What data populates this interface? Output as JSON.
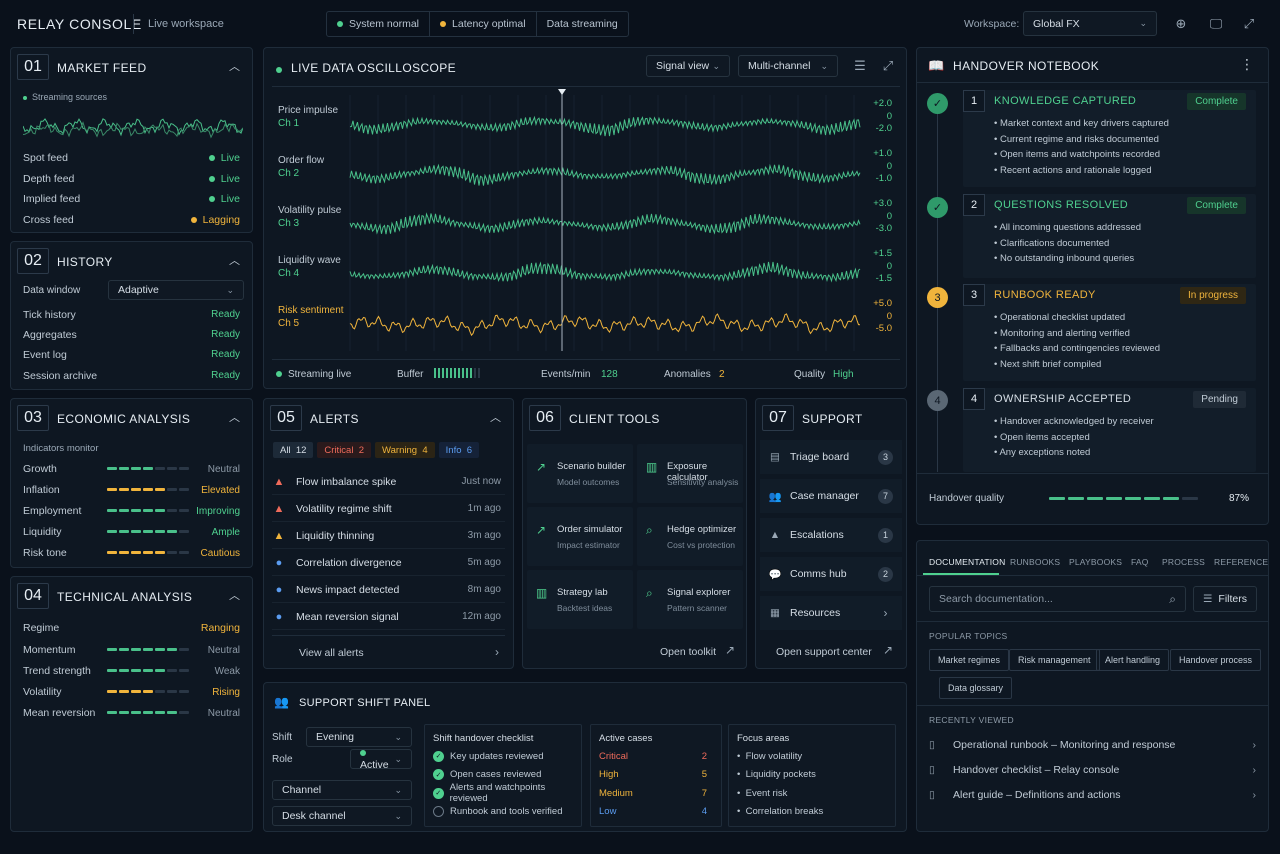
{
  "topbar": {
    "brand": "RELAY CONSOLE",
    "workspace_label": "Live workspace",
    "statuses": [
      {
        "label": "System normal",
        "color": "#4fd08f"
      },
      {
        "label": "Latency optimal",
        "color": "#f0b43c"
      },
      {
        "label": "Data streaming",
        "color": ""
      }
    ],
    "workspace_picker_label": "Workspace:",
    "workspace_value": "Global FX",
    "icons": [
      "target-icon",
      "monitor-icon",
      "fullscreen-icon"
    ]
  },
  "market_feed": {
    "num": "01",
    "title": "MARKET FEED",
    "sources_label": "Streaming sources",
    "feeds": [
      {
        "name": "Spot feed",
        "status": "Live",
        "tone": "green"
      },
      {
        "name": "Depth feed",
        "status": "Live",
        "tone": "green"
      },
      {
        "name": "Implied feed",
        "status": "Live",
        "tone": "green"
      },
      {
        "name": "Cross feed",
        "status": "Lagging",
        "tone": "amber"
      }
    ]
  },
  "history": {
    "num": "02",
    "title": "HISTORY",
    "window_label": "Data window",
    "window_value": "Adaptive",
    "items": [
      {
        "name": "Tick history",
        "status": "Ready"
      },
      {
        "name": "Aggregates",
        "status": "Ready"
      },
      {
        "name": "Event log",
        "status": "Ready"
      },
      {
        "name": "Session archive",
        "status": "Ready"
      }
    ]
  },
  "economic": {
    "num": "03",
    "title": "ECONOMIC ANALYSIS",
    "subtitle": "Indicators monitor",
    "rows": [
      {
        "name": "Growth",
        "level": 4,
        "tone": "g",
        "value": "Neutral",
        "vtone": "muted"
      },
      {
        "name": "Inflation",
        "level": 5,
        "tone": "y",
        "value": "Elevated",
        "vtone": "amber"
      },
      {
        "name": "Employment",
        "level": 5,
        "tone": "g",
        "value": "Improving",
        "vtone": "green"
      },
      {
        "name": "Liquidity",
        "level": 6,
        "tone": "g",
        "value": "Ample",
        "vtone": "green"
      },
      {
        "name": "Risk tone",
        "level": 5,
        "tone": "y",
        "value": "Cautious",
        "vtone": "amber"
      }
    ]
  },
  "technical": {
    "num": "04",
    "title": "TECHNICAL ANALYSIS",
    "regime_label": "Regime",
    "regime_value": "Ranging",
    "rows": [
      {
        "name": "Momentum",
        "level": 6,
        "tone": "g",
        "value": "Neutral",
        "vtone": "muted"
      },
      {
        "name": "Trend strength",
        "level": 5,
        "tone": "g",
        "value": "Weak",
        "vtone": "muted"
      },
      {
        "name": "Volatility",
        "level": 4,
        "tone": "y",
        "value": "Rising",
        "vtone": "amber"
      },
      {
        "name": "Mean reversion",
        "level": 6,
        "tone": "g",
        "value": "Neutral",
        "vtone": "muted"
      }
    ]
  },
  "oscilloscope": {
    "title": "LIVE DATA OSCILLOSCOPE",
    "view_select": "Signal view",
    "channel_select": "Multi-channel",
    "channels": [
      {
        "name": "Price impulse",
        "ch": "Ch 1",
        "scale": [
          "+2.0",
          "0",
          "-2.0"
        ],
        "color": "#49c08a"
      },
      {
        "name": "Order flow",
        "ch": "Ch 2",
        "scale": [
          "+1.0",
          "0",
          "-1.0"
        ],
        "color": "#49c08a"
      },
      {
        "name": "Volatility pulse",
        "ch": "Ch 3",
        "scale": [
          "+3.0",
          "0",
          "-3.0"
        ],
        "color": "#49c08a"
      },
      {
        "name": "Liquidity wave",
        "ch": "Ch 4",
        "scale": [
          "+1.5",
          "0",
          "-1.5"
        ],
        "color": "#49c08a"
      },
      {
        "name": "Risk sentiment",
        "ch": "Ch 5",
        "scale": [
          "+5.0",
          "0",
          "-5.0"
        ],
        "color": "#f0b43c"
      }
    ],
    "footer": {
      "streaming": "Streaming live",
      "buffer_label": "Buffer",
      "events_label": "Events/min",
      "events_value": "128",
      "anomalies_label": "Anomalies",
      "anomalies_value": "2",
      "quality_label": "Quality",
      "quality_value": "High"
    }
  },
  "alerts": {
    "num": "05",
    "title": "ALERTS",
    "filters": [
      {
        "label": "All",
        "count": "12"
      },
      {
        "label": "Critical",
        "count": "2"
      },
      {
        "label": "Warning",
        "count": "4"
      },
      {
        "label": "Info",
        "count": "6"
      }
    ],
    "items": [
      {
        "text": "Flow imbalance spike",
        "time": "Just now",
        "sev": "critical"
      },
      {
        "text": "Volatility regime shift",
        "time": "1m ago",
        "sev": "critical"
      },
      {
        "text": "Liquidity thinning",
        "time": "3m ago",
        "sev": "warning"
      },
      {
        "text": "Correlation divergence",
        "time": "5m ago",
        "sev": "info"
      },
      {
        "text": "News impact detected",
        "time": "8m ago",
        "sev": "info"
      },
      {
        "text": "Mean reversion signal",
        "time": "12m ago",
        "sev": "info"
      }
    ],
    "view_all": "View all alerts"
  },
  "client_tools": {
    "num": "06",
    "title": "CLIENT TOOLS",
    "tools": [
      {
        "name": "Scenario builder",
        "sub": "Model outcomes",
        "icon": "chart-line-icon"
      },
      {
        "name": "Exposure calculator",
        "sub": "Sensitivity analysis",
        "icon": "bar-chart-icon"
      },
      {
        "name": "Order simulator",
        "sub": "Impact estimator",
        "icon": "trend-icon"
      },
      {
        "name": "Hedge optimizer",
        "sub": "Cost vs protection",
        "icon": "magnify-icon"
      },
      {
        "name": "Strategy lab",
        "sub": "Backtest ideas",
        "icon": "bar-chart-icon"
      },
      {
        "name": "Signal explorer",
        "sub": "Pattern scanner",
        "icon": "magnify-icon"
      }
    ],
    "open": "Open toolkit"
  },
  "support": {
    "num": "07",
    "title": "SUPPORT",
    "items": [
      {
        "name": "Triage board",
        "count": "3"
      },
      {
        "name": "Case manager",
        "count": "7"
      },
      {
        "name": "Escalations",
        "count": "1"
      },
      {
        "name": "Comms hub",
        "count": "2"
      },
      {
        "name": "Resources",
        "count": ""
      }
    ],
    "open": "Open support center"
  },
  "shift_panel": {
    "title": "SUPPORT SHIFT PANEL",
    "shift_label": "Shift",
    "shift_value": "Evening",
    "role_label": "Role",
    "role_value": "Active",
    "channel_value": "Channel",
    "desk_value": "Desk channel",
    "checklist_title": "Shift handover checklist",
    "checklist": [
      {
        "text": "Key updates reviewed",
        "done": true
      },
      {
        "text": "Open cases reviewed",
        "done": true
      },
      {
        "text": "Alerts and watchpoints reviewed",
        "done": true
      },
      {
        "text": "Runbook and tools verified",
        "done": false
      }
    ],
    "cases_title": "Active cases",
    "cases": [
      {
        "label": "Critical",
        "count": "2",
        "tone": "red"
      },
      {
        "label": "High",
        "count": "5",
        "tone": "amber"
      },
      {
        "label": "Medium",
        "count": "7",
        "tone": "amber"
      },
      {
        "label": "Low",
        "count": "4",
        "tone": "blue"
      }
    ],
    "focus_title": "Focus areas",
    "focus": [
      "Flow volatility",
      "Liquidity pockets",
      "Event risk",
      "Correlation breaks"
    ]
  },
  "notebook": {
    "title": "HANDOVER NOTEBOOK",
    "steps": [
      {
        "num": "1",
        "title": "KNOWLEDGE CAPTURED",
        "badge": "Complete",
        "state": "done",
        "items": [
          "Market context and key drivers captured",
          "Current regime and risks documented",
          "Open items and watchpoints recorded",
          "Recent actions and rationale logged"
        ]
      },
      {
        "num": "2",
        "title": "QUESTIONS RESOLVED",
        "badge": "Complete",
        "state": "done",
        "items": [
          "All incoming questions addressed",
          "Clarifications documented",
          "No outstanding inbound queries"
        ]
      },
      {
        "num": "3",
        "title": "RUNBOOK READY",
        "badge": "In progress",
        "state": "progress",
        "items": [
          "Operational checklist updated",
          "Monitoring and alerting verified",
          "Fallbacks and contingencies reviewed",
          "Next shift brief compiled"
        ]
      },
      {
        "num": "4",
        "title": "OWNERSHIP ACCEPTED",
        "badge": "Pending",
        "state": "pending",
        "items": [
          "Handover acknowledged by receiver",
          "Open items accepted",
          "Any exceptions noted"
        ]
      }
    ],
    "quality_label": "Handover quality",
    "quality_value": "87%",
    "quality_fraction": 0.87
  },
  "docs": {
    "tabs": [
      "DOCUMENTATION",
      "RUNBOOKS",
      "PLAYBOOKS",
      "FAQ",
      "PROCESS",
      "REFERENCE"
    ],
    "search_placeholder": "Search documentation...",
    "filters": "Filters",
    "popular_label": "POPULAR TOPICS",
    "topics": [
      "Market regimes",
      "Risk management",
      "Alert handling",
      "Handover process",
      "Data glossary"
    ],
    "recent_label": "RECENTLY VIEWED",
    "recent": [
      "Operational runbook – Monitoring and response",
      "Handover checklist – Relay console",
      "Alert guide – Definitions and actions"
    ]
  }
}
